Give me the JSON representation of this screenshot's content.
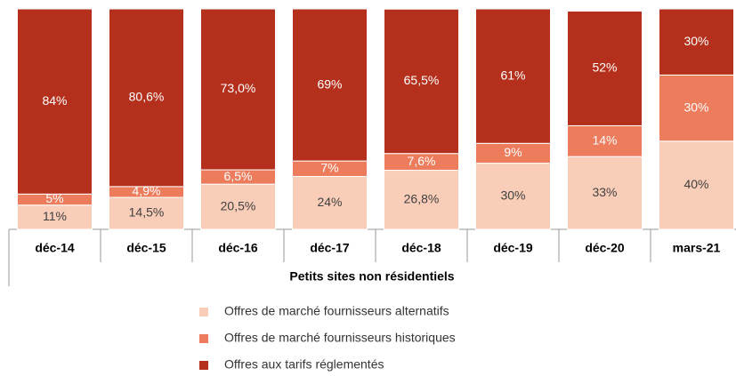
{
  "chart_data": {
    "type": "stacked_bar",
    "xlabel": "Petits sites non résidentiels",
    "categories": [
      "déc-14",
      "déc-15",
      "déc-16",
      "déc-17",
      "déc-18",
      "déc-19",
      "déc-20",
      "mars-21"
    ],
    "ylim": [
      0,
      100
    ],
    "series": [
      {
        "name": "Offres de marché fournisseurs alternatifs",
        "color": "#f9cdb8",
        "label_color": "#404040",
        "values": [
          11,
          14.5,
          20.5,
          24,
          26.8,
          30,
          33,
          40
        ],
        "value_labels": [
          "11%",
          "14,5%",
          "20,5%",
          "24%",
          "26,8%",
          "30%",
          "33%",
          "40%"
        ]
      },
      {
        "name": "Offres de marché fournisseurs historiques",
        "color": "#ec7c5c",
        "label_color": "#ffffff",
        "values": [
          5,
          4.9,
          6.5,
          7,
          7.6,
          9,
          14,
          30
        ],
        "value_labels": [
          "5%",
          "4,9%",
          "6,5%",
          "7%",
          "7,6%",
          "9%",
          "14%",
          "30%"
        ]
      },
      {
        "name": "Offres aux tarifs réglementés",
        "color": "#b5301c",
        "label_color": "#ffffff",
        "values": [
          84,
          80.6,
          73.0,
          69,
          65.5,
          61,
          52,
          30
        ],
        "value_labels": [
          "84%",
          "80,6%",
          "73,0%",
          "69%",
          "65,5%",
          "61%",
          "52%",
          "30%"
        ]
      }
    ]
  }
}
